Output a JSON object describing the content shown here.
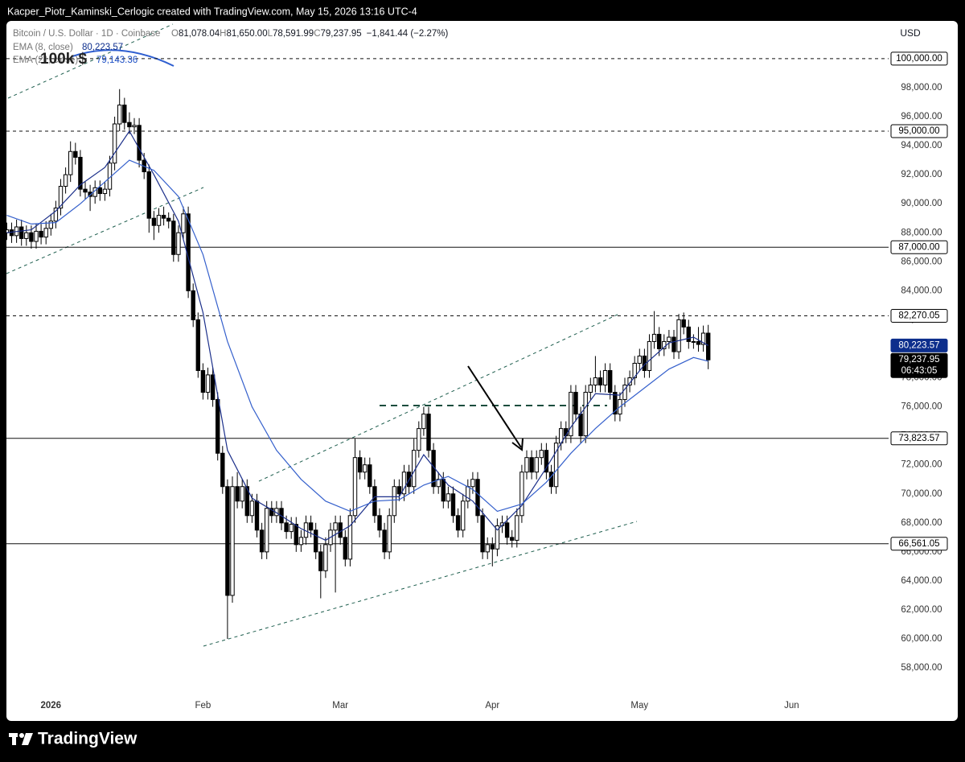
{
  "header": {
    "attribution": "Kacper_Piotr_Kaminski_Cerlogic created with TradingView.com, May 15, 2026 13:16 UTC-4"
  },
  "toolbar": {
    "currency": "USD"
  },
  "footer": {
    "brand": "TradingView"
  },
  "chart_data": {
    "type": "candlestick",
    "legend": {
      "symbol": "Bitcoin / U.S. Dollar · 1D · Coinbase",
      "ohlc_text": [
        "O",
        "81,078.04",
        "H",
        "81,650.00",
        "L",
        "78,591.99",
        "C",
        "79,237.95"
      ],
      "change": "−1,841.44 (−2.27%)"
    },
    "annotation": "100k $",
    "up_color": "#ffffff",
    "down_color": "#000000",
    "ylim": [
      54400,
      102600
    ],
    "yticks": [
      {
        "value": 58000,
        "label": "58,000.00"
      },
      {
        "value": 60000,
        "label": "60,000.00"
      },
      {
        "value": 62000,
        "label": "62,000.00"
      },
      {
        "value": 64000,
        "label": "64,000.00"
      },
      {
        "value": 66000,
        "label": "66,000.00"
      },
      {
        "value": 68000,
        "label": "68,000.00"
      },
      {
        "value": 70000,
        "label": "70,000.00"
      },
      {
        "value": 72000,
        "label": "72,000.00"
      },
      {
        "value": 74000,
        "label": "74,000.00"
      },
      {
        "value": 76000,
        "label": "76,000.00"
      },
      {
        "value": 78000,
        "label": "78,000.00"
      },
      {
        "value": 80000,
        "label": "80,000.00"
      },
      {
        "value": 82000,
        "label": "82,000.00"
      },
      {
        "value": 84000,
        "label": "84,000.00"
      },
      {
        "value": 86000,
        "label": "86,000.00"
      },
      {
        "value": 88000,
        "label": "88,000.00"
      },
      {
        "value": 90000,
        "label": "90,000.00"
      },
      {
        "value": 92000,
        "label": "92,000.00"
      },
      {
        "value": 94000,
        "label": "94,000.00"
      },
      {
        "value": 96000,
        "label": "96,000.00"
      },
      {
        "value": 98000,
        "label": "98,000.00"
      }
    ],
    "xticks": [
      {
        "value": 9,
        "label": "2026"
      },
      {
        "value": 40,
        "label": "Feb"
      },
      {
        "value": 68,
        "label": "Mar"
      },
      {
        "value": 99,
        "label": "Apr"
      },
      {
        "value": 129,
        "label": "May"
      },
      {
        "value": 160,
        "label": "Jun"
      }
    ],
    "levels": [
      {
        "value": 100000,
        "label": "100,000.00",
        "style": "dashed"
      },
      {
        "value": 95000,
        "label": "95,000.00",
        "style": "dashed"
      },
      {
        "value": 87000,
        "label": "87,000.00",
        "style": "solid"
      },
      {
        "value": 82270.05,
        "label": "82,270.05",
        "style": "dashed"
      },
      {
        "value": 73823.57,
        "label": "73,823.57",
        "style": "solid"
      },
      {
        "value": 66561.05,
        "label": "66,561.05",
        "style": "solid"
      }
    ],
    "last_price": {
      "value": 79237.95,
      "label": "79,237.95",
      "countdown": "06:43:05"
    },
    "series": [
      {
        "name": "EMA (8, close)",
        "color": "#1b2f8a",
        "tag_color": "#0d2e8c",
        "value_label": "80,223.57",
        "x": [
          0,
          5,
          10,
          15,
          20,
          25,
          30,
          35,
          40,
          45,
          50,
          55,
          60,
          65,
          70,
          75,
          80,
          85,
          90,
          95,
          100,
          105,
          110,
          115,
          120,
          125,
          130,
          135,
          140,
          143
        ],
        "values": [
          88000,
          88200,
          89500,
          91300,
          92500,
          95000,
          92000,
          88800,
          82500,
          73000,
          69700,
          68700,
          67600,
          66800,
          67800,
          69800,
          69800,
          72700,
          70600,
          69500,
          67500,
          69200,
          71800,
          74600,
          76900,
          76800,
          78900,
          80400,
          80800,
          80223.57
        ]
      },
      {
        "name": "EMA (21, close)",
        "color": "#3560cc",
        "tag_color": "#1d4fc4",
        "value_label": "79,143.36",
        "x": [
          0,
          5,
          10,
          15,
          20,
          25,
          30,
          35,
          40,
          45,
          50,
          55,
          60,
          65,
          70,
          75,
          80,
          85,
          90,
          95,
          100,
          105,
          110,
          115,
          120,
          125,
          130,
          135,
          140,
          143
        ],
        "values": [
          89200,
          88600,
          88700,
          90000,
          91500,
          93000,
          92300,
          90500,
          86500,
          80500,
          76000,
          73000,
          71000,
          69500,
          68800,
          69500,
          69600,
          70600,
          71200,
          70300,
          68800,
          69300,
          70800,
          72800,
          74500,
          76000,
          77300,
          78600,
          79400,
          79143.36
        ]
      }
    ],
    "ohlc": [
      [
        88000,
        88700,
        87500,
        88200
      ],
      [
        88200,
        88700,
        87300,
        87800
      ],
      [
        87800,
        88900,
        87300,
        88400
      ],
      [
        88400,
        88900,
        87100,
        87600
      ],
      [
        87600,
        88500,
        87100,
        88000
      ],
      [
        88000,
        88500,
        86900,
        87400
      ],
      [
        87400,
        88600,
        86900,
        88100
      ],
      [
        88100,
        88600,
        87200,
        87700
      ],
      [
        87700,
        88800,
        87200,
        88300
      ],
      [
        88300,
        89300,
        87800,
        88800
      ],
      [
        88800,
        90200,
        88300,
        89700
      ],
      [
        89700,
        91700,
        89200,
        91200
      ],
      [
        91200,
        92500,
        90700,
        92000
      ],
      [
        92000,
        94300,
        91500,
        93600
      ],
      [
        93600,
        94200,
        92700,
        93200
      ],
      [
        93200,
        93700,
        90500,
        91000
      ],
      [
        91000,
        91500,
        90300,
        90800
      ],
      [
        90800,
        91300,
        89500,
        90500
      ],
      [
        90500,
        91600,
        90000,
        91100
      ],
      [
        91100,
        91600,
        90200,
        90700
      ],
      [
        90700,
        91500,
        90200,
        91000
      ],
      [
        91000,
        93300,
        90500,
        92800
      ],
      [
        92800,
        96000,
        92300,
        95500
      ],
      [
        95500,
        97900,
        95000,
        96800
      ],
      [
        96800,
        97300,
        95100,
        95600
      ],
      [
        95600,
        96300,
        94800,
        95300
      ],
      [
        95300,
        95900,
        94800,
        95400
      ],
      [
        95400,
        95900,
        92500,
        93000
      ],
      [
        93000,
        93500,
        91700,
        92200
      ],
      [
        92200,
        92700,
        88000,
        89000
      ],
      [
        89000,
        89500,
        87500,
        88500
      ],
      [
        88500,
        89700,
        88000,
        89200
      ],
      [
        89200,
        89800,
        88500,
        89000
      ],
      [
        89000,
        89400,
        88300,
        88800
      ],
      [
        88800,
        89300,
        86000,
        86500
      ],
      [
        86500,
        88500,
        86000,
        88000
      ],
      [
        88000,
        89800,
        87500,
        89300
      ],
      [
        89300,
        89800,
        83500,
        84000
      ],
      [
        84000,
        84500,
        81500,
        82000
      ],
      [
        82000,
        82500,
        78000,
        78500
      ],
      [
        78500,
        79000,
        76500,
        77000
      ],
      [
        77000,
        78700,
        76500,
        78200
      ],
      [
        78200,
        78700,
        76000,
        76500
      ],
      [
        76500,
        77000,
        72300,
        72800
      ],
      [
        72800,
        73300,
        70000,
        70500
      ],
      [
        70500,
        71000,
        60000,
        63000
      ],
      [
        63000,
        71200,
        62500,
        70500
      ],
      [
        70500,
        71500,
        69000,
        69500
      ],
      [
        69500,
        71000,
        69000,
        70500
      ],
      [
        70500,
        71000,
        68000,
        68500
      ],
      [
        68500,
        70000,
        68000,
        69500
      ],
      [
        69500,
        70000,
        67000,
        67500
      ],
      [
        67500,
        68000,
        65500,
        66000
      ],
      [
        66000,
        69500,
        65500,
        69000
      ],
      [
        69000,
        69500,
        68000,
        68500
      ],
      [
        68500,
        69500,
        68000,
        69000
      ],
      [
        69000,
        69500,
        67500,
        68000
      ],
      [
        68000,
        68500,
        66900,
        67400
      ],
      [
        67400,
        68400,
        66900,
        67900
      ],
      [
        67900,
        68400,
        66000,
        66500
      ],
      [
        66500,
        67500,
        66000,
        67000
      ],
      [
        67000,
        68500,
        66500,
        68000
      ],
      [
        68000,
        68500,
        67000,
        67500
      ],
      [
        67500,
        68000,
        65500,
        66000
      ],
      [
        66000,
        66500,
        62800,
        64700
      ],
      [
        64700,
        67000,
        64200,
        66500
      ],
      [
        66500,
        68000,
        66000,
        67500
      ],
      [
        67500,
        68500,
        63200,
        68000
      ],
      [
        68000,
        68500,
        66500,
        67000
      ],
      [
        67000,
        67500,
        65000,
        65500
      ],
      [
        65500,
        69000,
        65000,
        68500
      ],
      [
        68500,
        73800,
        68000,
        72500
      ],
      [
        72500,
        73000,
        71000,
        71500
      ],
      [
        71500,
        72500,
        71000,
        72000
      ],
      [
        72000,
        72500,
        70000,
        70500
      ],
      [
        70500,
        71000,
        68000,
        68500
      ],
      [
        68500,
        69000,
        67000,
        67500
      ],
      [
        67500,
        68000,
        65500,
        66000
      ],
      [
        66000,
        69000,
        65500,
        68500
      ],
      [
        68500,
        71000,
        68000,
        70500
      ],
      [
        70500,
        71000,
        69500,
        70000
      ],
      [
        70000,
        72000,
        69500,
        71500
      ],
      [
        71500,
        72000,
        70000,
        70500
      ],
      [
        70500,
        73800,
        70000,
        73000
      ],
      [
        73000,
        75000,
        72500,
        74500
      ],
      [
        74500,
        76000,
        74000,
        75500
      ],
      [
        75500,
        76000,
        72500,
        73000
      ],
      [
        73000,
        73500,
        70000,
        70500
      ],
      [
        70500,
        71500,
        70000,
        71000
      ],
      [
        71000,
        71500,
        69000,
        69500
      ],
      [
        69500,
        70500,
        69000,
        70000
      ],
      [
        70000,
        70500,
        68000,
        68500
      ],
      [
        68500,
        69000,
        67000,
        67500
      ],
      [
        67500,
        70000,
        67000,
        69500
      ],
      [
        69500,
        71000,
        69000,
        70500
      ],
      [
        70500,
        71500,
        70000,
        71000
      ],
      [
        71000,
        71500,
        68000,
        68500
      ],
      [
        68500,
        69000,
        65500,
        66000
      ],
      [
        66000,
        67000,
        65500,
        66500
      ],
      [
        66500,
        67000,
        65000,
        66200
      ],
      [
        66200,
        68300,
        65700,
        67800
      ],
      [
        67800,
        68500,
        67300,
        68000
      ],
      [
        68000,
        68500,
        66500,
        67000
      ],
      [
        67000,
        67500,
        66300,
        66800
      ],
      [
        66800,
        69000,
        66300,
        68500
      ],
      [
        68500,
        72000,
        68000,
        71500
      ],
      [
        71500,
        73000,
        71000,
        72500
      ],
      [
        72500,
        73000,
        71000,
        71500
      ],
      [
        71500,
        73000,
        71000,
        72500
      ],
      [
        72500,
        73500,
        72000,
        73000
      ],
      [
        73000,
        73500,
        71000,
        71500
      ],
      [
        71500,
        72000,
        70000,
        70500
      ],
      [
        70500,
        74000,
        70000,
        73500
      ],
      [
        73500,
        75000,
        73000,
        74500
      ],
      [
        74500,
        75000,
        73500,
        74000
      ],
      [
        74000,
        77500,
        73500,
        77000
      ],
      [
        77000,
        77500,
        75000,
        75500
      ],
      [
        75500,
        76000,
        73500,
        74000
      ],
      [
        74000,
        77500,
        73500,
        77000
      ],
      [
        77000,
        78000,
        76500,
        77500
      ],
      [
        77500,
        79500,
        77000,
        78000
      ],
      [
        78000,
        78500,
        77000,
        77500
      ],
      [
        77500,
        79000,
        77000,
        78500
      ],
      [
        78500,
        79000,
        76500,
        77000
      ],
      [
        77000,
        77500,
        75000,
        75500
      ],
      [
        75500,
        77000,
        75000,
        76500
      ],
      [
        76500,
        78000,
        76000,
        77500
      ],
      [
        77500,
        78500,
        77000,
        78000
      ],
      [
        78000,
        79500,
        77500,
        79000
      ],
      [
        79000,
        80000,
        78500,
        79500
      ],
      [
        79500,
        80000,
        78000,
        78500
      ],
      [
        78500,
        81000,
        78000,
        80500
      ],
      [
        80500,
        82600,
        80000,
        81000
      ],
      [
        81000,
        81500,
        79500,
        80000
      ],
      [
        80000,
        81000,
        79500,
        80500
      ],
      [
        80500,
        81300,
        80000,
        80800
      ],
      [
        80800,
        81300,
        79300,
        79800
      ],
      [
        79800,
        82400,
        79300,
        82000
      ],
      [
        82000,
        82500,
        81000,
        81500
      ],
      [
        81500,
        82000,
        80000,
        80500
      ],
      [
        80500,
        81000,
        80000,
        80500
      ],
      [
        80500,
        81500,
        79800,
        80300
      ],
      [
        80300,
        81600,
        79800,
        81078.04
      ],
      [
        81078.04,
        81650,
        78591.99,
        79237.95
      ]
    ]
  }
}
